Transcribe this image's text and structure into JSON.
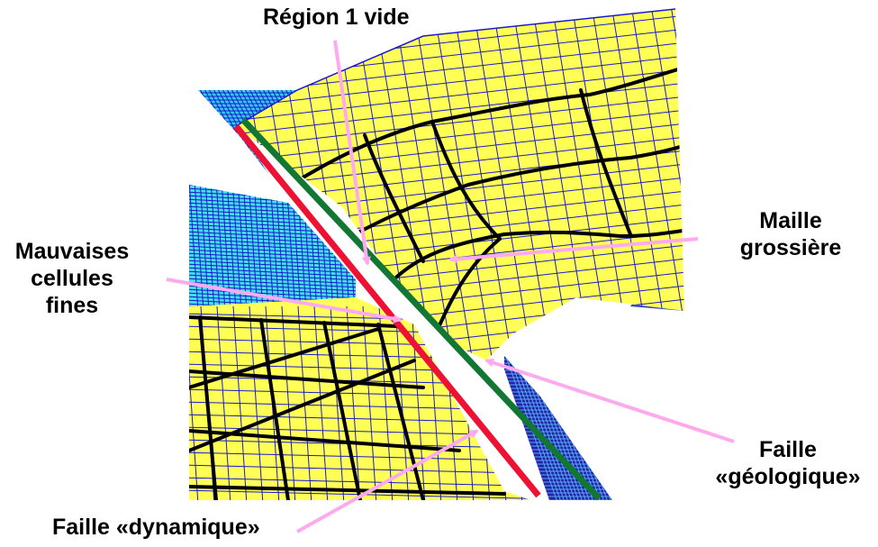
{
  "labels": {
    "region_vide": "Région 1 vide",
    "maille_grossiere": [
      "Maille",
      "grossière"
    ],
    "mauvaises_cellules": [
      "Mauvaises",
      "cellules",
      "fines"
    ],
    "faille_geologique": [
      "Faille",
      "«géologique»"
    ],
    "faille_dynamique": "Faille «dynamique»"
  },
  "colors": {
    "mesh_fill": "#ffff55",
    "mesh_line": "#1a1acc",
    "coarse_line": "#000000",
    "fine_mesh_cyan": "#33ccee",
    "fault_geologique": "#117733",
    "fault_dynamique": "#ee1133",
    "arrow": "#ffaaee"
  }
}
